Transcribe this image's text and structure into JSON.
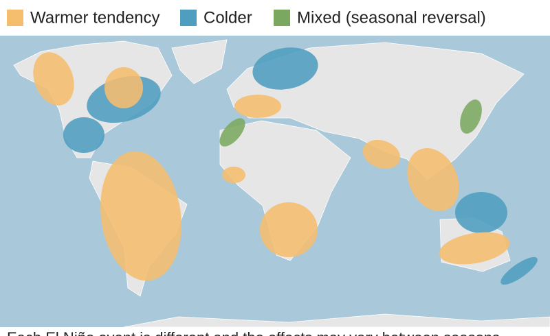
{
  "legend": [
    {
      "label": "Warmer tendency",
      "color": "#f5bd6e"
    },
    {
      "label": "Colder",
      "color": "#4f9dbf"
    },
    {
      "label": "Mixed (seasonal reversal)",
      "color": "#7ba860"
    }
  ],
  "caption": "Each El Niño event is different and the effects may vary between seasons"
}
